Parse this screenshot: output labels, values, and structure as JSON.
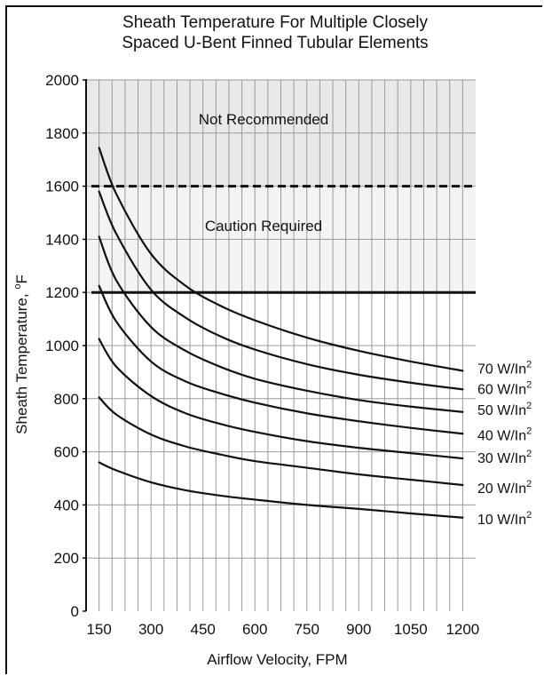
{
  "chart_data": {
    "type": "line",
    "title": "Sheath Temperature For Multiple Closely Spaced U-Bent Finned Tubular Elements",
    "title_lines": [
      "Sheath Temperature For Multiple Closely",
      "Spaced U-Bent Finned Tubular Elements"
    ],
    "xlabel": "Airflow Velocity, FPM",
    "ylabel": "Sheath Temperature, °F",
    "ylabel_main": "Sheath Temperature, ",
    "ylabel_sup": "o",
    "ylabel_unit": "F",
    "xlim": [
      112.5,
      1237.5
    ],
    "ylim": [
      0,
      2000
    ],
    "x_ticks": [
      150,
      300,
      450,
      600,
      750,
      900,
      1050,
      1200
    ],
    "y_ticks": [
      0,
      200,
      400,
      600,
      800,
      1000,
      1200,
      1400,
      1600,
      1800,
      2000
    ],
    "grid": true,
    "legend": "right-end labels",
    "zones": [
      {
        "label": "Not Recommended",
        "from": 1600,
        "to": 2000,
        "color": "#e9e9e9"
      },
      {
        "label": "Caution Required",
        "from": 1200,
        "to": 1600,
        "color": "#f4f4f4"
      }
    ],
    "reference_lines": [
      {
        "y": 1600,
        "style": "dashed"
      },
      {
        "y": 1200,
        "style": "solid"
      }
    ],
    "series": [
      {
        "name": "10 W/In²",
        "label_main": "10 W/In",
        "label_sup": "2",
        "x": [
          150,
          200,
          300,
          400,
          500,
          600,
          750,
          900,
          1050,
          1200
        ],
        "y": [
          560,
          530,
          485,
          455,
          435,
          420,
          400,
          385,
          368,
          352
        ]
      },
      {
        "name": "20 W/In²",
        "label_main": "20 W/In",
        "label_sup": "2",
        "x": [
          150,
          200,
          300,
          400,
          500,
          600,
          750,
          900,
          1050,
          1200
        ],
        "y": [
          805,
          740,
          665,
          620,
          590,
          565,
          540,
          515,
          495,
          475
        ]
      },
      {
        "name": "30 W/In²",
        "label_main": "30 W/In",
        "label_sup": "2",
        "x": [
          150,
          200,
          300,
          400,
          500,
          600,
          750,
          900,
          1050,
          1200
        ],
        "y": [
          1025,
          920,
          810,
          745,
          705,
          675,
          640,
          615,
          595,
          575
        ]
      },
      {
        "name": "40 W/In²",
        "label_main": "40 W/In",
        "label_sup": "2",
        "x": [
          150,
          200,
          300,
          400,
          500,
          600,
          750,
          900,
          1050,
          1200
        ],
        "y": [
          1225,
          1090,
          940,
          865,
          820,
          785,
          745,
          715,
          690,
          668
        ]
      },
      {
        "name": "50 W/In²",
        "label_main": "50 W/In",
        "label_sup": "2",
        "x": [
          150,
          200,
          300,
          400,
          500,
          600,
          750,
          900,
          1050,
          1200
        ],
        "y": [
          1410,
          1245,
          1070,
          980,
          920,
          875,
          830,
          795,
          770,
          750
        ]
      },
      {
        "name": "60 W/In²",
        "label_main": "60 W/In",
        "label_sup": "2",
        "x": [
          150,
          200,
          300,
          400,
          500,
          600,
          750,
          900,
          1050,
          1200
        ],
        "y": [
          1580,
          1420,
          1210,
          1105,
          1035,
          985,
          930,
          890,
          860,
          835
        ]
      },
      {
        "name": "70 W/In²",
        "label_main": "70 W/In",
        "label_sup": "2",
        "x": [
          150,
          200,
          300,
          400,
          500,
          600,
          750,
          900,
          1050,
          1200
        ],
        "y": [
          1745,
          1570,
          1345,
          1225,
          1150,
          1095,
          1030,
          980,
          940,
          905
        ]
      }
    ]
  }
}
